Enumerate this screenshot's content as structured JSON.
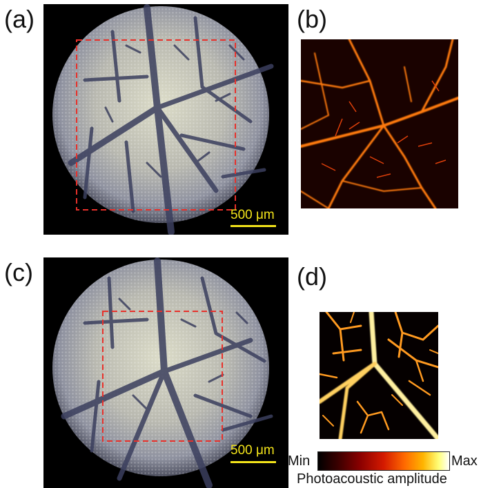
{
  "panels": {
    "a": {
      "label": "(a)",
      "image": "leaf-microscope-photo"
    },
    "b": {
      "label": "(b)",
      "image": "photoacoustic-image-venation"
    },
    "c": {
      "label": "(c)",
      "image": "leaf-microscope-photo"
    },
    "d": {
      "label": "(d)",
      "image": "photoacoustic-image-venation-zoom"
    }
  },
  "scalebar": {
    "label_a": "500 μm",
    "label_c": "500 μm"
  },
  "colorbar": {
    "min_label": "Min",
    "max_label": "Max",
    "caption": "Photoacoustic amplitude",
    "colors": [
      "#000000",
      "#8a0000",
      "#d41a00",
      "#ff6a00",
      "#ffb400",
      "#ffff7a",
      "#ffffff"
    ]
  },
  "colors": {
    "roi_box": "#e8302a",
    "scalebar": "#f2e31a"
  }
}
